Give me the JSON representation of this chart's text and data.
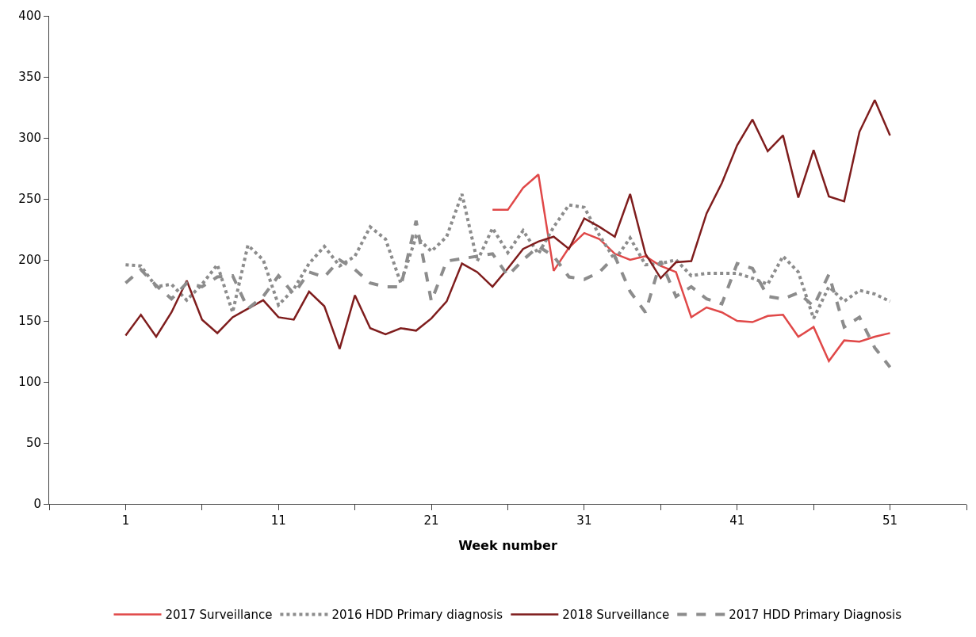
{
  "chart_data": {
    "type": "line",
    "xlabel": "Week number",
    "x": [
      1,
      2,
      3,
      4,
      5,
      6,
      7,
      8,
      9,
      10,
      11,
      12,
      13,
      14,
      15,
      16,
      17,
      18,
      19,
      20,
      21,
      22,
      23,
      24,
      25,
      26,
      27,
      28,
      29,
      30,
      31,
      32,
      33,
      34,
      35,
      36,
      37,
      38,
      39,
      40,
      41,
      42,
      43,
      44,
      45,
      46,
      47,
      48,
      49,
      50,
      51
    ],
    "xlim": [
      -4,
      56
    ],
    "xticks": [
      {
        "value": -4,
        "label": null
      },
      1,
      {
        "value": 6,
        "label": null
      },
      11,
      {
        "value": 16,
        "label": null
      },
      21,
      {
        "value": 26,
        "label": null
      },
      31,
      {
        "value": 36,
        "label": null
      },
      41,
      {
        "value": 46,
        "label": null
      },
      51,
      {
        "value": 56,
        "label": null
      }
    ],
    "ylim": [
      0,
      400
    ],
    "yticks": [
      0,
      50,
      100,
      150,
      200,
      250,
      300,
      350,
      400
    ],
    "grid": false,
    "legend": "bottom",
    "marker": "none",
    "series": [
      {
        "name": "2017 Surveillance",
        "color": "#e04848",
        "line_style": "solid",
        "values": [
          null,
          null,
          null,
          null,
          null,
          null,
          null,
          null,
          null,
          null,
          null,
          null,
          null,
          null,
          null,
          null,
          null,
          null,
          null,
          null,
          null,
          null,
          null,
          null,
          241,
          241,
          259,
          270,
          191,
          210,
          222,
          217,
          205,
          200,
          203,
          195,
          190,
          153,
          161,
          157,
          150,
          149,
          154,
          155,
          137,
          145,
          117,
          134,
          133,
          137,
          140
        ]
      },
      {
        "name": "2016 HDD Primary diagnosis",
        "color": "#8c8c8c",
        "line_style": "dotted",
        "values": [
          196,
          195,
          178,
          180,
          167,
          180,
          196,
          157,
          212,
          200,
          163,
          176,
          197,
          211,
          195,
          203,
          227,
          217,
          181,
          219,
          207,
          219,
          254,
          199,
          226,
          206,
          224,
          205,
          227,
          245,
          243,
          220,
          200,
          218,
          196,
          197,
          200,
          187,
          189,
          189,
          189,
          185,
          180,
          203,
          190,
          152,
          178,
          166,
          175,
          172,
          166
        ]
      },
      {
        "name": "2018 Surveillance",
        "color": "#7f1d1d",
        "line_style": "solid",
        "values": [
          138,
          155,
          137,
          157,
          183,
          151,
          140,
          153,
          160,
          167,
          153,
          151,
          174,
          162,
          127,
          171,
          144,
          139,
          144,
          142,
          152,
          166,
          197,
          190,
          178,
          193,
          209,
          215,
          219,
          209,
          234,
          227,
          219,
          254,
          205,
          185,
          198,
          199,
          238,
          263,
          294,
          315,
          289,
          302,
          251,
          290,
          252,
          248,
          305,
          331,
          302
        ]
      },
      {
        "name": "2017 HDD Primary Diagnosis",
        "color": "#8c8c8c",
        "line_style": "dashed",
        "values": [
          181,
          192,
          179,
          168,
          181,
          178,
          186,
          187,
          160,
          170,
          187,
          172,
          190,
          186,
          200,
          192,
          181,
          178,
          178,
          232,
          166,
          199,
          201,
          203,
          205,
          187,
          200,
          211,
          203,
          186,
          184,
          190,
          203,
          174,
          157,
          199,
          170,
          178,
          168,
          164,
          197,
          193,
          170,
          168,
          173,
          162,
          188,
          145,
          153,
          128,
          112
        ]
      }
    ]
  }
}
